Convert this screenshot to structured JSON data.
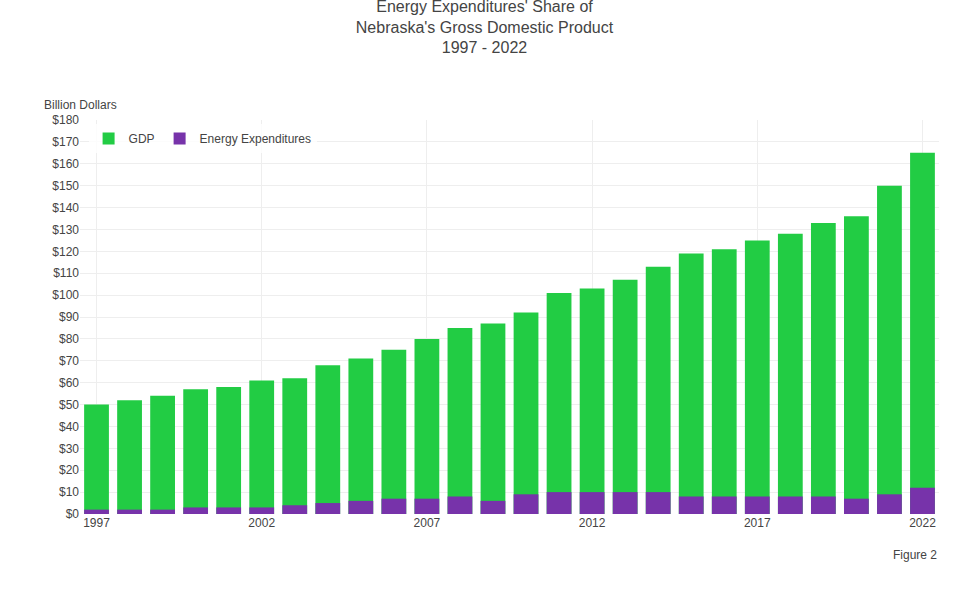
{
  "chart_data": {
    "type": "bar",
    "title": "Energy Expenditures' Share of\nNebraska's Gross Domestic Product\n1997 - 2022",
    "ylabel": "Billion Dollars",
    "annotations": [
      "Figure 2"
    ],
    "categories": [
      "1997",
      null,
      null,
      null,
      null,
      "2002",
      null,
      null,
      null,
      null,
      "2007",
      null,
      null,
      null,
      null,
      "2012",
      null,
      null,
      null,
      null,
      "2017",
      null,
      null,
      null,
      null,
      "2022"
    ],
    "series": [
      {
        "name": "GDP",
        "color": "#22cc44",
        "values": [
          50,
          52,
          54,
          57,
          58,
          61,
          62,
          68,
          71,
          75,
          80,
          85,
          87,
          92,
          101,
          103,
          107,
          113,
          119,
          121,
          125,
          128,
          133,
          136,
          150,
          165
        ]
      },
      {
        "name": "Energy Expenditures",
        "color": "#7733aa",
        "values": [
          2,
          2,
          2,
          3,
          3,
          3,
          4,
          5,
          6,
          7,
          7,
          8,
          6,
          9,
          10,
          10,
          10,
          10,
          8,
          8,
          8,
          8,
          8,
          7,
          9,
          12
        ]
      }
    ],
    "stacked": false,
    "ylim": [
      0,
      180
    ],
    "yticks": [
      {
        "value": 0,
        "label": "$0"
      },
      {
        "value": 10,
        "label": "$10"
      },
      {
        "value": 20,
        "label": "$20"
      },
      {
        "value": 30,
        "label": "$30"
      },
      {
        "value": 40,
        "label": "$40"
      },
      {
        "value": 50,
        "label": "$50"
      },
      {
        "value": 60,
        "label": "$60"
      },
      {
        "value": 70,
        "label": "$70"
      },
      {
        "value": 80,
        "label": "$80"
      },
      {
        "value": 90,
        "label": "$90"
      },
      {
        "value": 100,
        "label": "$100"
      },
      {
        "value": 110,
        "label": "$110"
      },
      {
        "value": 120,
        "label": "$120"
      },
      {
        "value": 130,
        "label": "$130"
      },
      {
        "value": 140,
        "label": "$140"
      },
      {
        "value": 150,
        "label": "$150"
      },
      {
        "value": 160,
        "label": "$160"
      },
      {
        "value": 170,
        "label": "$170"
      },
      {
        "value": 180,
        "label": "$180"
      }
    ],
    "grid": true,
    "legend": "upper left"
  }
}
